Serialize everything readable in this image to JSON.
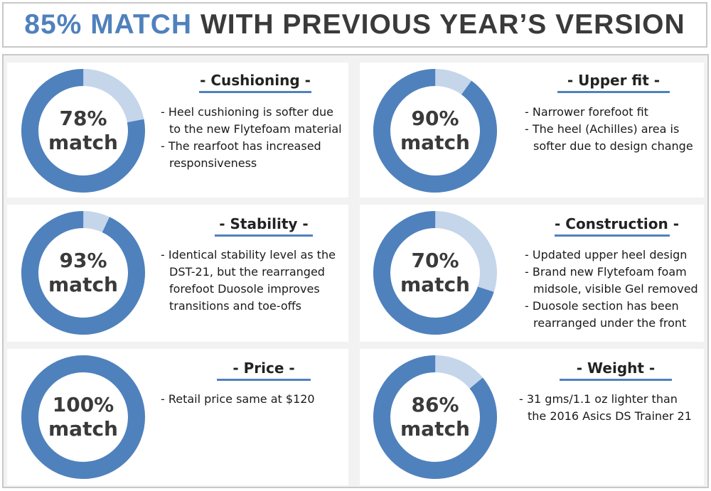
{
  "header": {
    "accent_text": "85% MATCH",
    "rest_text": "WITH PREVIOUS YEAR’S VERSION"
  },
  "colors": {
    "accent": "#4f81bd",
    "remainder": "#c5d5ea",
    "text": "#3a3a3a"
  },
  "chart_data": [
    {
      "type": "pie",
      "title": "- Cushioning -",
      "values": [
        78,
        22
      ],
      "percent_label": "78%",
      "match_label": "match",
      "notes": [
        "Heel cushioning is softer due\nto the new Flytefoam material",
        "The rearfoot has increased\nresponsiveness"
      ]
    },
    {
      "type": "pie",
      "title": "- Upper fit -",
      "values": [
        90,
        10
      ],
      "percent_label": "90%",
      "match_label": "match",
      "notes": [
        "Narrower forefoot fit",
        "The heel (Achilles) area is\nsofter due to design change"
      ]
    },
    {
      "type": "pie",
      "title": "- Stability -",
      "values": [
        93,
        7
      ],
      "percent_label": "93%",
      "match_label": "match",
      "notes": [
        "Identical stability level as the\nDST-21, but the rearranged\nforefoot Duosole improves\ntransitions and toe-offs"
      ]
    },
    {
      "type": "pie",
      "title": "- Construction -",
      "values": [
        70,
        30
      ],
      "percent_label": "70%",
      "match_label": "match",
      "notes": [
        "Updated upper heel design",
        "Brand new Flytefoam foam\nmidsole, visible Gel removed",
        "Duosole section has been\nrearranged under the front"
      ]
    },
    {
      "type": "pie",
      "title": "- Price -",
      "values": [
        100,
        0
      ],
      "percent_label": "100%",
      "match_label": "match",
      "notes": [
        " Retail price same at $120"
      ]
    },
    {
      "type": "pie",
      "title": "- Weight -",
      "values": [
        86,
        14
      ],
      "percent_label": "86%",
      "match_label": "match",
      "notes": [
        "31 gms/1.1 oz lighter than\nthe 2016 Asics DS Trainer 21"
      ]
    }
  ]
}
